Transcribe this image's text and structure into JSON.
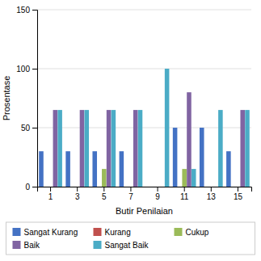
{
  "chart_data": {
    "type": "bar",
    "xlabel": "Butir Penilaian",
    "ylabel": "Prosentase",
    "categories": [
      "1",
      "3",
      "5",
      "7",
      "9",
      "11",
      "13",
      "15"
    ],
    "series": [
      {
        "name": "Sangat Kurang",
        "color": "#4472C4",
        "values": [
          30,
          30,
          30,
          30,
          0,
          50,
          50,
          30
        ]
      },
      {
        "name": "Kurang",
        "color": "#C0504D",
        "values": [
          0,
          0,
          0,
          0,
          0,
          0,
          0,
          0
        ]
      },
      {
        "name": "Cukup",
        "color": "#9BBB59",
        "values": [
          0,
          0,
          15,
          0,
          0,
          15,
          0,
          0
        ]
      },
      {
        "name": "Baik",
        "color": "#8064A2",
        "values": [
          65,
          65,
          65,
          65,
          0,
          80,
          0,
          65
        ]
      },
      {
        "name": "Sangat Baik",
        "color": "#4BACC6",
        "values": [
          65,
          65,
          65,
          65,
          100,
          15,
          65,
          65
        ]
      }
    ],
    "ylim": [
      0,
      150
    ],
    "yticks": [
      0,
      50,
      100,
      150
    ],
    "grid": true,
    "legend": "bottom"
  }
}
